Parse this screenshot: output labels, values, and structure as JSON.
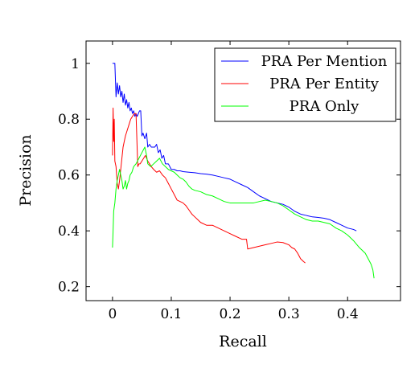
{
  "chart_data": {
    "type": "line",
    "xlabel": "Recall",
    "ylabel": "Precision",
    "xlim": [
      -0.045,
      0.49
    ],
    "ylim": [
      0.15,
      1.08
    ],
    "xticks": [
      0,
      0.1,
      0.2,
      0.3,
      0.4
    ],
    "xtick_labels": [
      "0",
      "0.1",
      "0.2",
      "0.3",
      "0.4"
    ],
    "yticks": [
      0.2,
      0.4,
      0.6,
      0.8,
      1.0
    ],
    "ytick_labels": [
      "0.2",
      "0.4",
      "0.6",
      "0.8",
      "1"
    ],
    "grid": false,
    "legend_position": "top-right",
    "series": [
      {
        "name": "PRA Per Mention",
        "color": "#0000ff",
        "x": [
          0.0,
          0.002,
          0.004,
          0.006,
          0.008,
          0.01,
          0.012,
          0.014,
          0.016,
          0.018,
          0.02,
          0.022,
          0.024,
          0.026,
          0.028,
          0.03,
          0.032,
          0.034,
          0.036,
          0.038,
          0.04,
          0.042,
          0.044,
          0.046,
          0.048,
          0.05,
          0.052,
          0.055,
          0.058,
          0.06,
          0.063,
          0.066,
          0.069,
          0.072,
          0.075,
          0.078,
          0.081,
          0.084,
          0.087,
          0.09,
          0.095,
          0.1,
          0.105,
          0.11,
          0.115,
          0.12,
          0.13,
          0.14,
          0.15,
          0.16,
          0.17,
          0.18,
          0.19,
          0.2,
          0.21,
          0.22,
          0.23,
          0.24,
          0.25,
          0.26,
          0.27,
          0.28,
          0.29,
          0.3,
          0.31,
          0.32,
          0.33,
          0.34,
          0.35,
          0.36,
          0.37,
          0.38,
          0.39,
          0.4,
          0.41,
          0.415
        ],
        "y": [
          1.0,
          1.0,
          1.0,
          0.88,
          0.93,
          0.89,
          0.92,
          0.88,
          0.9,
          0.86,
          0.89,
          0.85,
          0.87,
          0.84,
          0.86,
          0.83,
          0.84,
          0.82,
          0.83,
          0.81,
          0.82,
          0.81,
          0.82,
          0.83,
          0.83,
          0.74,
          0.75,
          0.73,
          0.75,
          0.7,
          0.71,
          0.7,
          0.7,
          0.7,
          0.71,
          0.68,
          0.69,
          0.66,
          0.67,
          0.64,
          0.64,
          0.62,
          0.62,
          0.615,
          0.615,
          0.612,
          0.61,
          0.608,
          0.605,
          0.603,
          0.6,
          0.595,
          0.59,
          0.585,
          0.575,
          0.565,
          0.555,
          0.54,
          0.525,
          0.515,
          0.505,
          0.5,
          0.495,
          0.485,
          0.47,
          0.46,
          0.455,
          0.45,
          0.448,
          0.445,
          0.44,
          0.43,
          0.42,
          0.41,
          0.405,
          0.4
        ]
      },
      {
        "name": "PRA Per Entity",
        "color": "#ff0000",
        "x": [
          0.0,
          0.001,
          0.002,
          0.003,
          0.004,
          0.006,
          0.008,
          0.01,
          0.012,
          0.014,
          0.016,
          0.018,
          0.02,
          0.022,
          0.025,
          0.028,
          0.031,
          0.034,
          0.037,
          0.04,
          0.043,
          0.045,
          0.047,
          0.05,
          0.053,
          0.056,
          0.06,
          0.063,
          0.066,
          0.07,
          0.075,
          0.08,
          0.085,
          0.09,
          0.095,
          0.1,
          0.105,
          0.11,
          0.115,
          0.12,
          0.125,
          0.13,
          0.135,
          0.14,
          0.145,
          0.15,
          0.16,
          0.17,
          0.18,
          0.19,
          0.2,
          0.21,
          0.22,
          0.228,
          0.23,
          0.24,
          0.25,
          0.26,
          0.27,
          0.28,
          0.29,
          0.3,
          0.305,
          0.31,
          0.315,
          0.32,
          0.325,
          0.328
        ],
        "y": [
          0.67,
          0.84,
          0.72,
          0.8,
          0.65,
          0.63,
          0.57,
          0.55,
          0.58,
          0.62,
          0.66,
          0.7,
          0.72,
          0.74,
          0.76,
          0.78,
          0.8,
          0.81,
          0.82,
          0.82,
          0.63,
          0.64,
          0.64,
          0.65,
          0.66,
          0.67,
          0.65,
          0.64,
          0.63,
          0.62,
          0.61,
          0.615,
          0.6,
          0.59,
          0.57,
          0.55,
          0.53,
          0.51,
          0.505,
          0.5,
          0.49,
          0.475,
          0.46,
          0.45,
          0.44,
          0.43,
          0.42,
          0.42,
          0.41,
          0.4,
          0.39,
          0.38,
          0.37,
          0.37,
          0.335,
          0.34,
          0.345,
          0.35,
          0.355,
          0.36,
          0.358,
          0.35,
          0.34,
          0.335,
          0.32,
          0.3,
          0.29,
          0.285
        ]
      },
      {
        "name": "PRA Only",
        "color": "#00ff00",
        "x": [
          0.0,
          0.001,
          0.002,
          0.004,
          0.006,
          0.008,
          0.01,
          0.012,
          0.014,
          0.016,
          0.018,
          0.02,
          0.022,
          0.024,
          0.026,
          0.028,
          0.03,
          0.033,
          0.036,
          0.04,
          0.045,
          0.05,
          0.055,
          0.058,
          0.06,
          0.065,
          0.07,
          0.075,
          0.08,
          0.085,
          0.09,
          0.095,
          0.1,
          0.105,
          0.11,
          0.115,
          0.12,
          0.125,
          0.13,
          0.135,
          0.14,
          0.15,
          0.16,
          0.17,
          0.18,
          0.19,
          0.2,
          0.21,
          0.22,
          0.23,
          0.24,
          0.25,
          0.26,
          0.27,
          0.28,
          0.29,
          0.3,
          0.31,
          0.32,
          0.33,
          0.34,
          0.35,
          0.36,
          0.37,
          0.38,
          0.39,
          0.4,
          0.41,
          0.42,
          0.43,
          0.435,
          0.44,
          0.443,
          0.445
        ],
        "y": [
          0.34,
          0.4,
          0.47,
          0.5,
          0.55,
          0.58,
          0.6,
          0.62,
          0.6,
          0.58,
          0.55,
          0.56,
          0.58,
          0.55,
          0.57,
          0.58,
          0.6,
          0.61,
          0.63,
          0.64,
          0.66,
          0.68,
          0.7,
          0.67,
          0.64,
          0.63,
          0.64,
          0.65,
          0.66,
          0.64,
          0.63,
          0.62,
          0.615,
          0.61,
          0.6,
          0.59,
          0.585,
          0.575,
          0.56,
          0.55,
          0.545,
          0.54,
          0.53,
          0.525,
          0.515,
          0.505,
          0.5,
          0.5,
          0.5,
          0.5,
          0.5,
          0.505,
          0.51,
          0.505,
          0.5,
          0.49,
          0.475,
          0.46,
          0.45,
          0.44,
          0.435,
          0.435,
          0.43,
          0.425,
          0.41,
          0.4,
          0.385,
          0.365,
          0.34,
          0.32,
          0.3,
          0.28,
          0.26,
          0.23
        ]
      }
    ]
  }
}
